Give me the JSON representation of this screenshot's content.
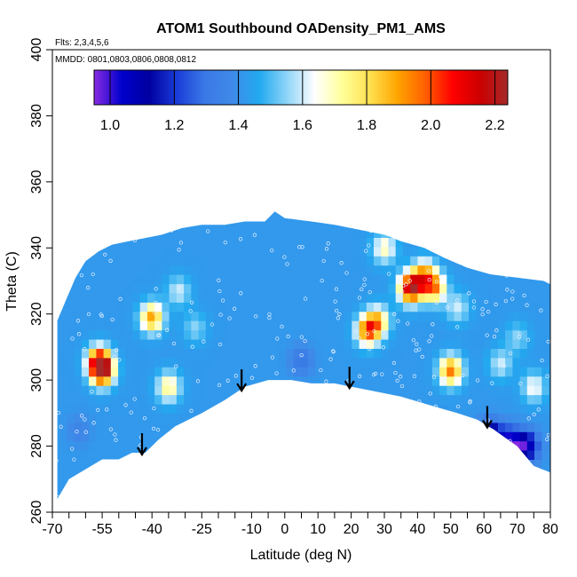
{
  "chart_data": {
    "type": "heatmap",
    "title": "ATOM1 Southbound OADensity_PM1_AMS",
    "subtitle": "Flts: 2,3,4,5,6",
    "annotation": "MMDD: 0801,0803,0806,0808,0812",
    "xlabel": "Latitude (deg N)",
    "ylabel": "Theta (C)",
    "xlim": [
      -70,
      80
    ],
    "ylim": [
      260,
      400
    ],
    "x_tick_labels": [
      "-70",
      "-55",
      "-40",
      "-25",
      "-10",
      "0",
      "10",
      "20",
      "30",
      "40",
      "50",
      "60",
      "70",
      "80"
    ],
    "x_tick_values": [
      -70,
      -55,
      -40,
      -25,
      -10,
      0,
      10,
      20,
      30,
      40,
      50,
      60,
      70,
      80
    ],
    "y_tick_labels": [
      "260",
      "280",
      "300",
      "320",
      "340",
      "360",
      "380",
      "400"
    ],
    "y_tick_values": [
      260,
      280,
      300,
      320,
      340,
      360,
      380,
      400
    ],
    "colorbar": {
      "min": 0.95,
      "max": 2.24,
      "ticks": [
        1.0,
        1.2,
        1.4,
        1.6,
        1.8,
        2.0,
        2.2
      ],
      "tick_labels": [
        "1.0",
        "1.2",
        "1.4",
        "1.6",
        "1.8",
        "2.0",
        "2.2"
      ],
      "colors": [
        "#8a2be2",
        "#0000cd",
        "#0000a0",
        "#1a3cd8",
        "#3a78e6",
        "#3f8ae8",
        "#22aaf0",
        "#8fd5f8",
        "#ffffff",
        "#ffff99",
        "#ffe050",
        "#ffa500",
        "#ff6000",
        "#ff0000",
        "#cc0000",
        "#a52a2a"
      ]
    },
    "background_value": 1.42,
    "ceiling": [
      [
        -68.5,
        318
      ],
      [
        -66,
        324
      ],
      [
        -63,
        331
      ],
      [
        -60,
        336
      ],
      [
        -56,
        339
      ],
      [
        -52,
        341
      ],
      [
        -47,
        342
      ],
      [
        -42,
        343
      ],
      [
        -37,
        344
      ],
      [
        -31,
        346
      ],
      [
        -25,
        347
      ],
      [
        -18,
        347
      ],
      [
        -12,
        348
      ],
      [
        -6,
        348
      ],
      [
        -3,
        351
      ],
      [
        0,
        349
      ],
      [
        8,
        348
      ],
      [
        15,
        347
      ],
      [
        20,
        346
      ],
      [
        30,
        344
      ],
      [
        35,
        342
      ],
      [
        42,
        340
      ],
      [
        48,
        337
      ],
      [
        55,
        334
      ],
      [
        62,
        332
      ],
      [
        70,
        331
      ],
      [
        78,
        330
      ],
      [
        80,
        329
      ],
      [
        80.5,
        293
      ]
    ],
    "floor": [
      [
        80,
        272
      ],
      [
        75,
        274
      ],
      [
        70,
        280
      ],
      [
        63,
        285
      ],
      [
        58,
        288
      ],
      [
        52,
        290
      ],
      [
        45,
        292
      ],
      [
        35,
        295
      ],
      [
        25,
        297
      ],
      [
        20,
        298
      ],
      [
        15,
        299
      ],
      [
        8,
        299
      ],
      [
        2,
        300
      ],
      [
        -5,
        300
      ],
      [
        -12,
        298
      ],
      [
        -18,
        294
      ],
      [
        -25,
        290
      ],
      [
        -33,
        286
      ],
      [
        -38,
        282
      ],
      [
        -42,
        278
      ],
      [
        -46,
        278
      ],
      [
        -50,
        276
      ],
      [
        -55,
        276
      ],
      [
        -60,
        273
      ],
      [
        -65,
        270
      ],
      [
        -68.5,
        264
      ]
    ],
    "features": [
      {
        "x": -56,
        "y": 306,
        "value": 1.95
      },
      {
        "x": -55,
        "y": 303,
        "value": 2.15
      },
      {
        "x": -40,
        "y": 319,
        "value": 1.9
      },
      {
        "x": -32,
        "y": 327,
        "value": 1.6
      },
      {
        "x": -27,
        "y": 316,
        "value": 1.55
      },
      {
        "x": -35,
        "y": 298,
        "value": 1.75
      },
      {
        "x": 25,
        "y": 315,
        "value": 1.95
      },
      {
        "x": 28,
        "y": 318,
        "value": 1.8
      },
      {
        "x": 38,
        "y": 328,
        "value": 2.2
      },
      {
        "x": 42,
        "y": 332,
        "value": 1.85
      },
      {
        "x": 45,
        "y": 328,
        "value": 1.9
      },
      {
        "x": 52,
        "y": 322,
        "value": 1.6
      },
      {
        "x": 50,
        "y": 303,
        "value": 1.95
      },
      {
        "x": 30,
        "y": 340,
        "value": 1.7
      },
      {
        "x": 65,
        "y": 305,
        "value": 1.6
      },
      {
        "x": 75,
        "y": 298,
        "value": 1.65
      },
      {
        "x": 70,
        "y": 313,
        "value": 1.55
      },
      {
        "x": 62,
        "y": 283,
        "value": 1.0
      },
      {
        "x": 68,
        "y": 281,
        "value": 1.0
      },
      {
        "x": 73,
        "y": 280,
        "value": 1.05
      },
      {
        "x": -62,
        "y": 285,
        "value": 1.35
      },
      {
        "x": 5,
        "y": 306,
        "value": 1.3
      }
    ],
    "arrows": [
      -43,
      -13,
      19.5,
      61
    ],
    "grid": false
  }
}
